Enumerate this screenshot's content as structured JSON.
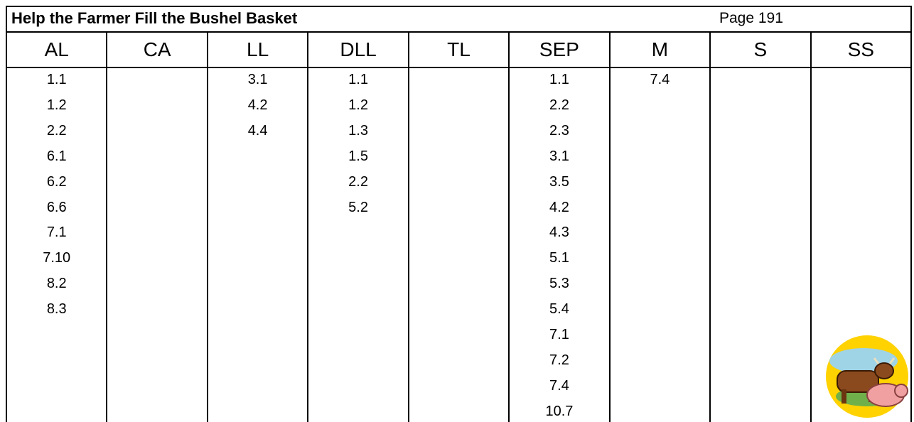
{
  "header": {
    "title": "Help the Farmer Fill the Bushel Basket",
    "page": "Page 191"
  },
  "table": {
    "columns": [
      "AL",
      "CA",
      "LL",
      "DLL",
      "TL",
      "SEP",
      "M",
      "S",
      "SS"
    ],
    "entries": [
      [
        "1.1",
        "1.2",
        "2.2",
        "6.1",
        "6.2",
        "6.6",
        "7.1",
        "7.10",
        "8.2",
        "8.3"
      ],
      [],
      [
        "3.1",
        "4.2",
        "4.4"
      ],
      [
        "1.1",
        "1.2",
        "1.3",
        "1.5",
        "2.2",
        "5.2"
      ],
      [],
      [
        "1.1",
        "2.2",
        "2.3",
        "3.1",
        "3.5",
        "4.2",
        "4.3",
        "5.1",
        "5.3",
        "5.4",
        "7.1",
        "7.2",
        "7.4",
        "10.7"
      ],
      [
        "7.4"
      ],
      [],
      []
    ]
  }
}
